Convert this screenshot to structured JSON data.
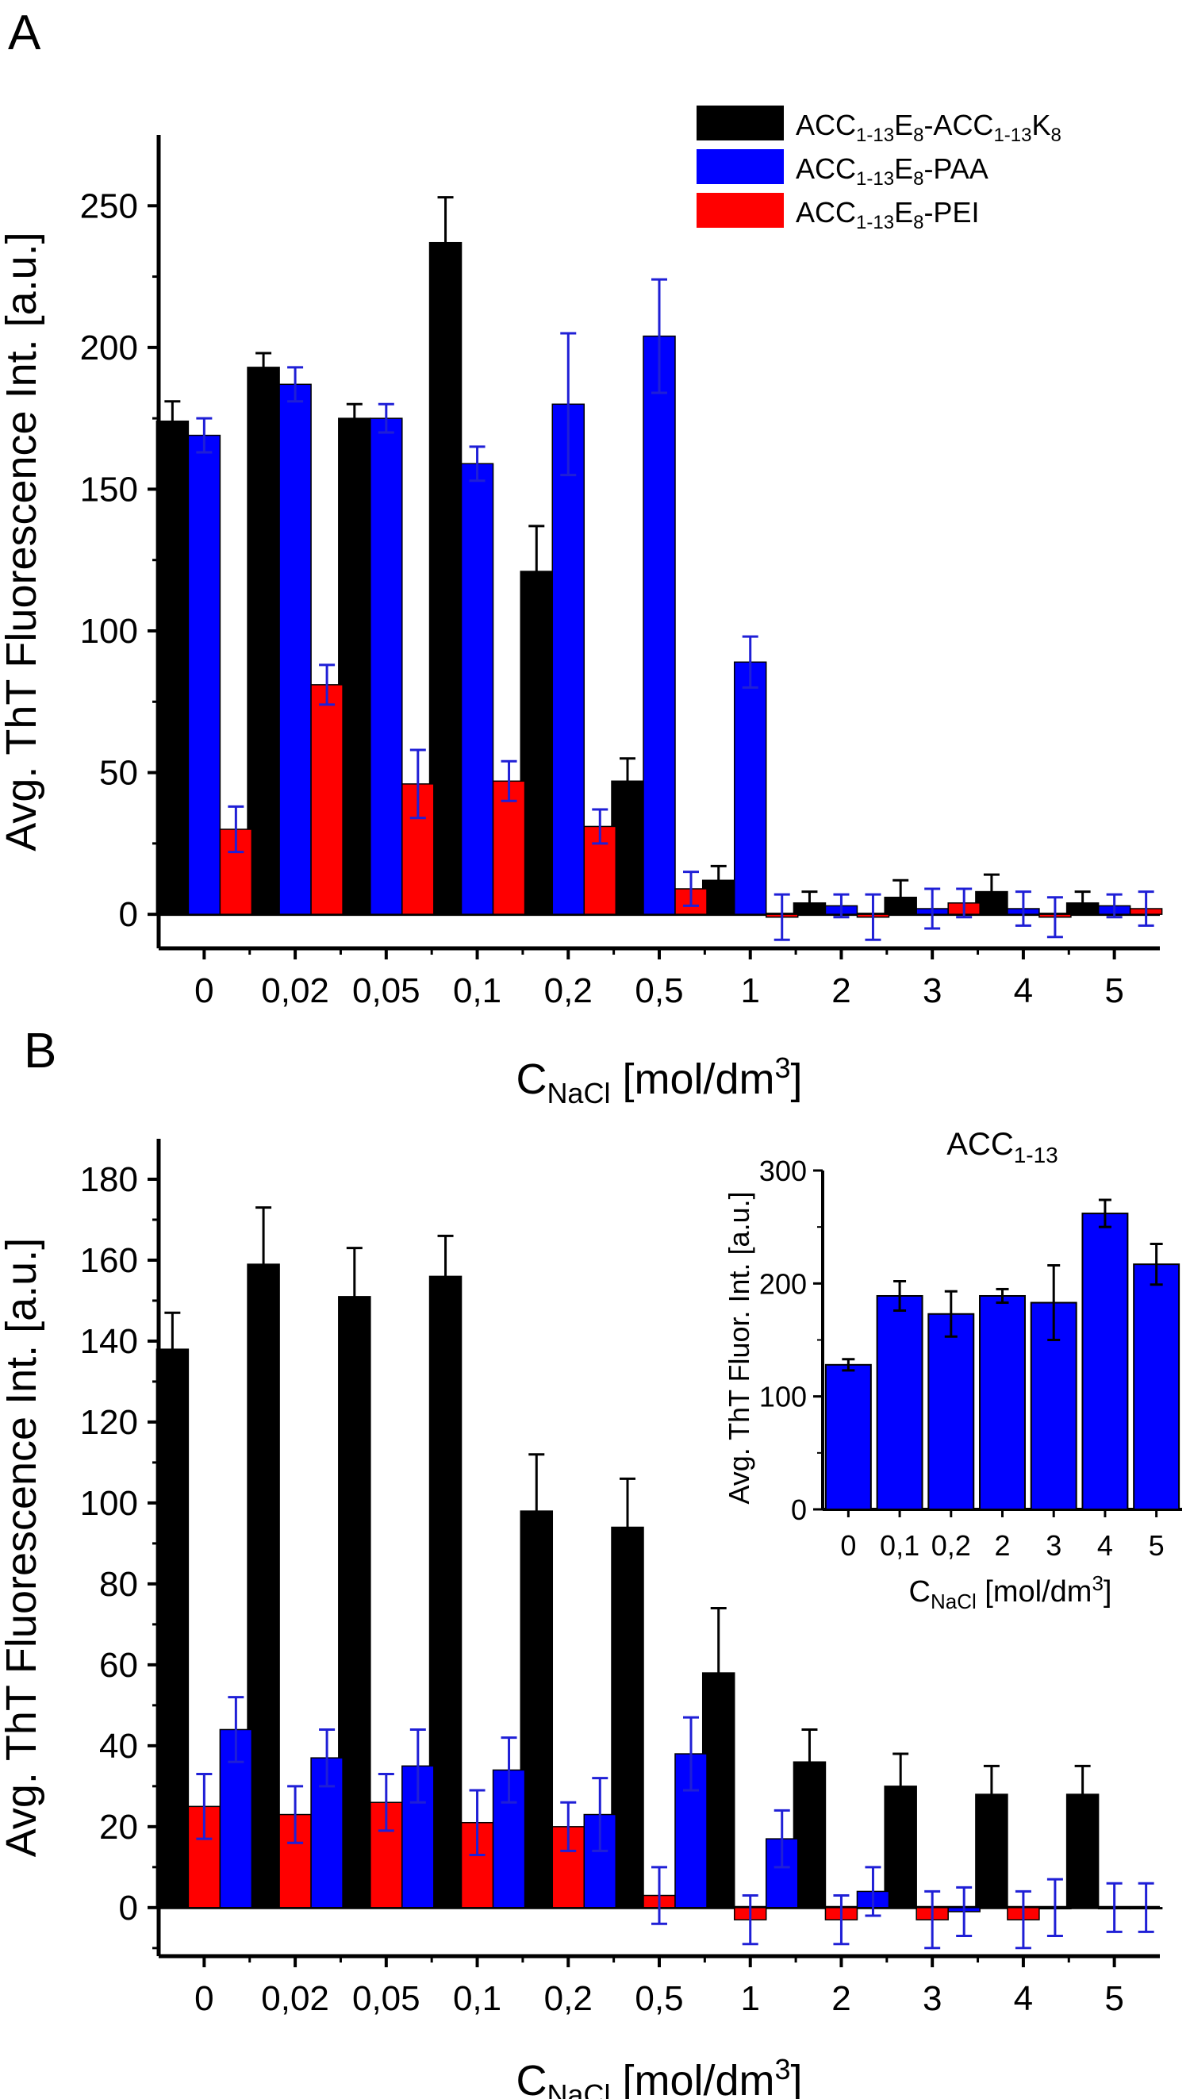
{
  "colors": {
    "black_series": "#000000",
    "paa_series": "#0000ff",
    "pei_series": "#ff0000",
    "error_black": "#000000",
    "error_blue": "#1f1fd6"
  },
  "chart_data": [
    {
      "panel": "A",
      "type": "bar",
      "categories": [
        "0",
        "0,02",
        "0,05",
        "0,1",
        "0,2",
        "0,5",
        "1",
        "2",
        "3",
        "4",
        "5"
      ],
      "ylabel": "Avg. ThT Fluorescence Int. [a.u.]",
      "xlabel": {
        "main": "C",
        "sub": "NaCl",
        "unit": " [mol/dm",
        "sup": "3",
        "close": "]"
      },
      "ylim": [
        -12,
        275
      ],
      "yticks": [
        0,
        50,
        100,
        150,
        200,
        250
      ],
      "legend_position": "top-right",
      "series": [
        {
          "name": "ACC1-13E8-ACC1-13K8",
          "legend": [
            [
              "ACC",
              ""
            ],
            [
              "1-13",
              "sub"
            ],
            [
              "E",
              ""
            ],
            [
              "8",
              "sub"
            ],
            [
              "-ACC",
              ""
            ],
            [
              "1-13",
              "sub"
            ],
            [
              "K",
              ""
            ],
            [
              "8",
              "sub"
            ]
          ],
          "color": "#000000",
          "values": [
            174,
            193,
            175,
            237,
            121,
            47,
            12,
            4,
            6,
            8,
            4
          ],
          "errors": [
            7,
            5,
            5,
            16,
            16,
            8,
            5,
            4,
            6,
            6,
            4
          ]
        },
        {
          "name": "ACC1-13E8-PAA",
          "legend": [
            [
              "ACC",
              ""
            ],
            [
              "1-13",
              "sub"
            ],
            [
              "E",
              ""
            ],
            [
              "8",
              "sub"
            ],
            [
              "-PAA",
              ""
            ]
          ],
          "color": "#0000ff",
          "values": [
            169,
            187,
            175,
            159,
            180,
            204,
            89,
            3,
            2,
            2,
            3
          ],
          "errors": [
            6,
            6,
            5,
            6,
            25,
            20,
            9,
            4,
            7,
            6,
            4
          ]
        },
        {
          "name": "ACC1-13E8-PEI",
          "legend": [
            [
              "ACC",
              ""
            ],
            [
              "1-13",
              "sub"
            ],
            [
              "E",
              ""
            ],
            [
              "8",
              "sub"
            ],
            [
              "-PEI",
              ""
            ]
          ],
          "color": "#ff0000",
          "values": [
            30,
            81,
            46,
            47,
            31,
            9,
            -1,
            -1,
            4,
            -1,
            2
          ],
          "errors": [
            8,
            7,
            12,
            7,
            6,
            6,
            8,
            8,
            5,
            7,
            6
          ]
        }
      ]
    },
    {
      "panel": "B",
      "type": "bar",
      "categories": [
        "0",
        "0,02",
        "0,05",
        "0,1",
        "0,2",
        "0,5",
        "1",
        "2",
        "3",
        "4",
        "5"
      ],
      "ylabel": "Avg. ThT Fluorescence Int. [a.u.]",
      "xlabel": {
        "main": "C",
        "sub": "NaCl",
        "unit": " [mol/dm",
        "sup": "3",
        "close": "]"
      },
      "ylim": [
        -12,
        190
      ],
      "yticks": [
        0,
        20,
        40,
        60,
        80,
        100,
        120,
        140,
        160,
        180
      ],
      "series": [
        {
          "name": "ACC1-13E8-ACC1-13K8",
          "color": "#000000",
          "values": [
            138,
            159,
            151,
            156,
            98,
            94,
            58,
            36,
            30,
            28,
            28
          ],
          "errors": [
            9,
            14,
            12,
            10,
            14,
            12,
            16,
            8,
            8,
            7,
            7
          ]
        },
        {
          "name": "ACC1-13E8-PEI",
          "color": "#ff0000",
          "values": [
            25,
            23,
            26,
            21,
            20,
            3,
            -3,
            -3,
            -3,
            -3,
            0
          ],
          "errors": [
            8,
            7,
            7,
            8,
            6,
            7,
            6,
            6,
            7,
            7,
            6
          ]
        },
        {
          "name": "ACC1-13E8-PAA",
          "color": "#0000ff",
          "values": [
            44,
            37,
            35,
            34,
            23,
            38,
            17,
            4,
            -1,
            0,
            0
          ],
          "errors": [
            8,
            7,
            9,
            8,
            9,
            9,
            7,
            6,
            6,
            7,
            6
          ]
        }
      ]
    },
    {
      "panel": "B-inset",
      "type": "bar",
      "title": {
        "main": "ACC",
        "sub": "1-13"
      },
      "categories": [
        "0",
        "0,1",
        "0,2",
        "2",
        "3",
        "4",
        "5"
      ],
      "ylabel": "Avg. ThT Fluor. Int. [a.u.]",
      "xlabel": {
        "main": "C",
        "sub": "NaCl",
        "unit": " [mol/dm",
        "sup": "3",
        "close": "]"
      },
      "ylim": [
        0,
        300
      ],
      "yticks": [
        0,
        100,
        200,
        300
      ],
      "series": [
        {
          "name": "ACC1-13",
          "color": "#0000ff",
          "values": [
            128,
            189,
            173,
            189,
            183,
            262,
            217
          ],
          "errors": [
            5,
            13,
            20,
            6,
            33,
            12,
            18
          ]
        }
      ]
    }
  ]
}
